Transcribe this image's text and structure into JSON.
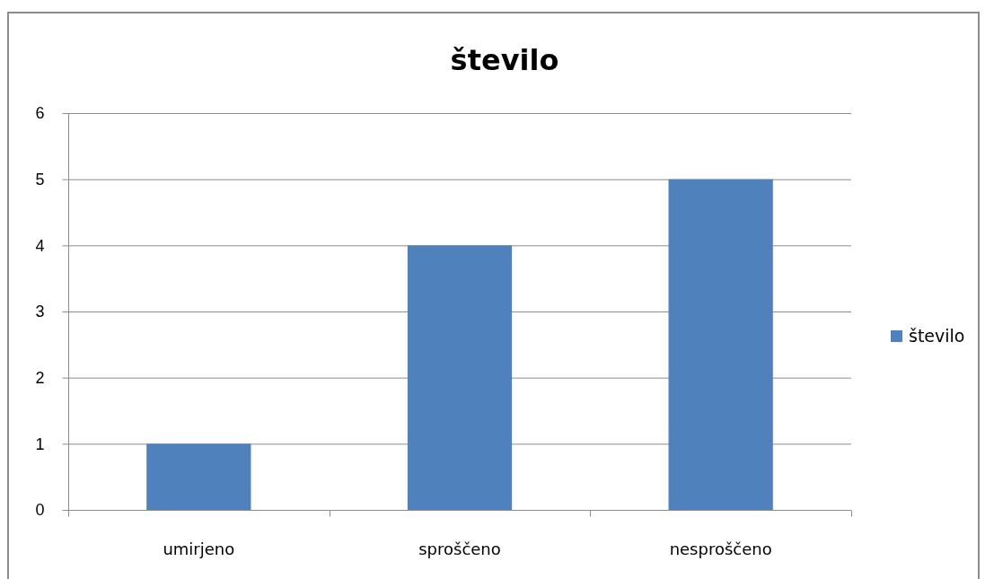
{
  "chart_data": {
    "type": "bar",
    "title": "število",
    "categories": [
      "umirjeno",
      "sproščeno",
      "nesproščeno"
    ],
    "series": [
      {
        "name": "število",
        "color": "#4f81bd",
        "values": [
          1,
          4,
          5
        ]
      }
    ],
    "ylim": [
      0,
      6
    ],
    "yticks": [
      0,
      1,
      2,
      3,
      4,
      5,
      6
    ],
    "grid": "y",
    "legend": "right"
  }
}
